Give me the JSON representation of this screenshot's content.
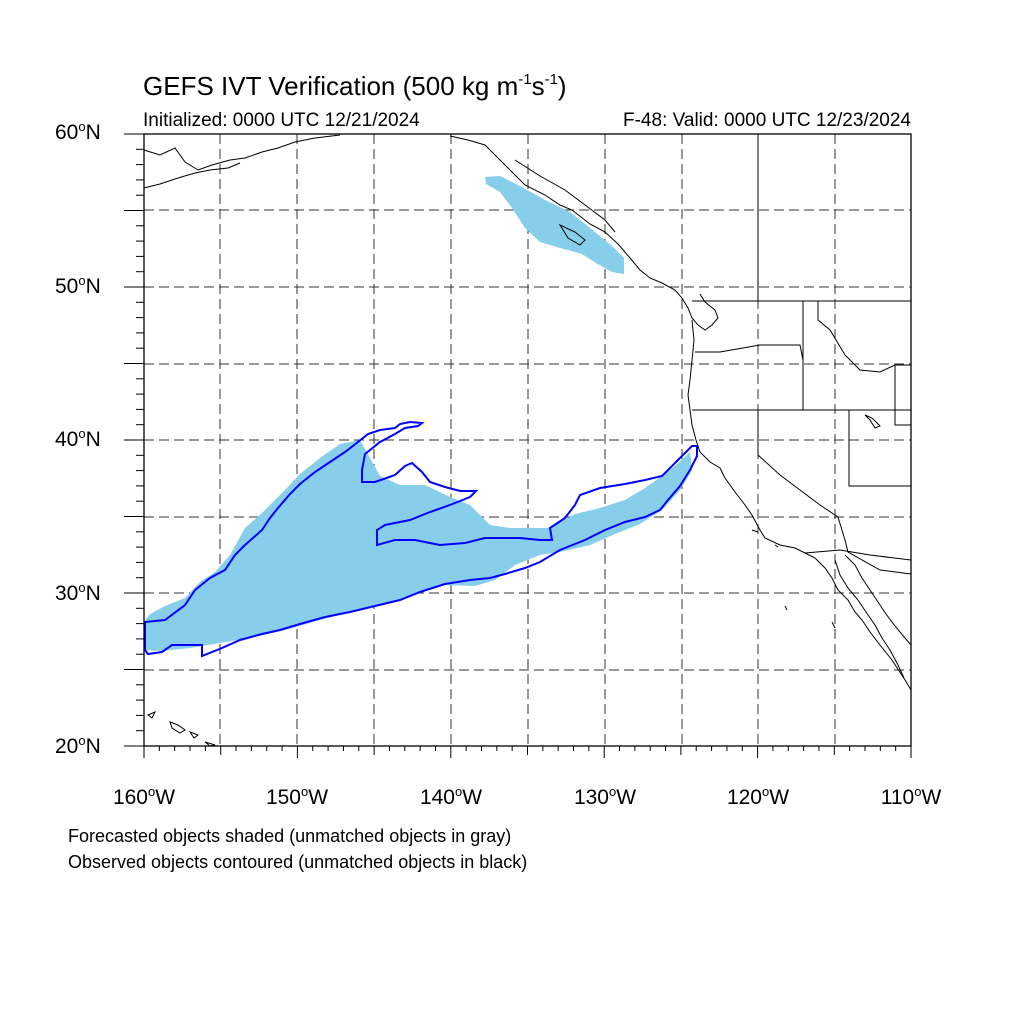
{
  "title": {
    "main": "GEFS IVT Verification (500 kg m",
    "exp1": "-1",
    "mid": "s",
    "exp2": "-1",
    "end": ")"
  },
  "subtitle_left": "Initialized: 0000 UTC 12/21/2024",
  "subtitle_right": "F-48: Valid: 0000 UTC 12/23/2024",
  "map": {
    "lon_range": [
      -160,
      -110
    ],
    "lat_range": [
      20,
      60
    ],
    "grid": "dashed every 5 degrees",
    "lat_labels": [
      {
        "value": "20",
        "suffix": "N"
      },
      {
        "value": "30",
        "suffix": "N"
      },
      {
        "value": "40",
        "suffix": "N"
      },
      {
        "value": "50",
        "suffix": "N"
      },
      {
        "value": "60",
        "suffix": "N"
      }
    ],
    "lon_labels": [
      {
        "value": "160",
        "suffix": "W"
      },
      {
        "value": "150",
        "suffix": "W"
      },
      {
        "value": "140",
        "suffix": "W"
      },
      {
        "value": "130",
        "suffix": "W"
      },
      {
        "value": "120",
        "suffix": "W"
      },
      {
        "value": "110",
        "suffix": "W"
      }
    ],
    "forecast_fill_color": "#87ceeb",
    "observed_contour_color": "#0000ff",
    "coast_color": "#000000"
  },
  "legend": {
    "line1": "Forecasted objects shaded (unmatched objects in gray)",
    "line2": "Observed objects contoured (unmatched objects in black)"
  }
}
